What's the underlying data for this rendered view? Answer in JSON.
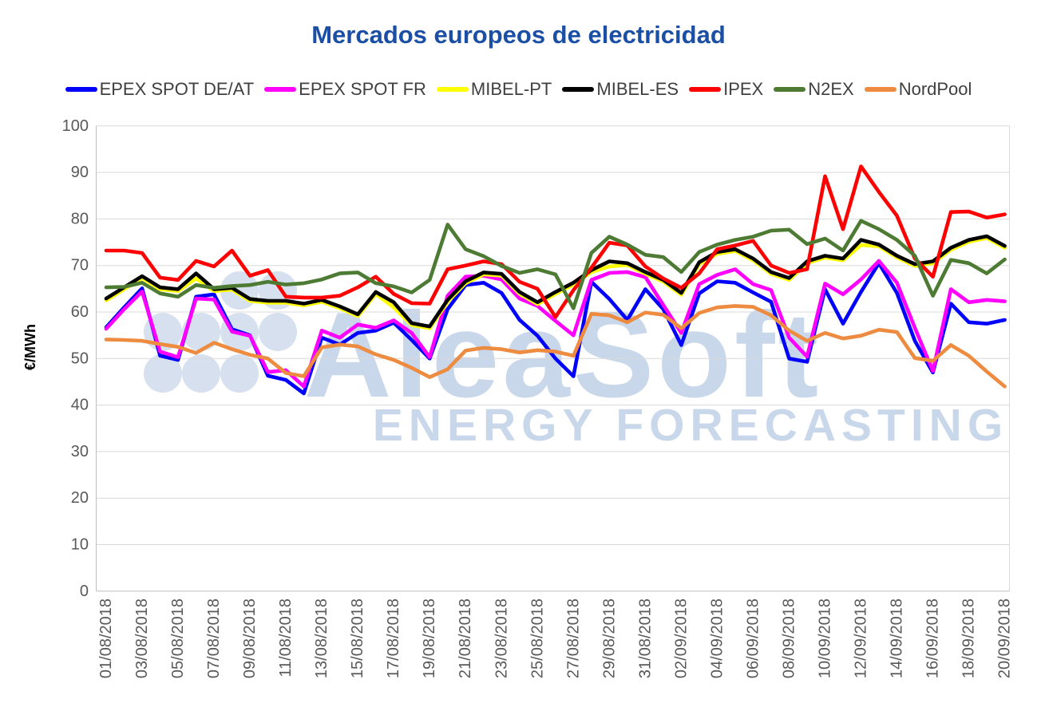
{
  "title": "Mercados europeos de electricidad",
  "watermark": {
    "line1": "AleaSoft",
    "line2": "ENERGY FORECASTING",
    "color": "#c9d7ea",
    "dot_color": "#d6e0ef"
  },
  "colors": {
    "title": "#1b4fa5",
    "grid": "#d9d9d9",
    "axis_line": "#bfbfbf",
    "tick_text": "#595959",
    "legend_text": "#3f3f3f"
  },
  "chart_data": {
    "type": "line",
    "title": "Mercados europeos de electricidad",
    "ylabel": "€/MWh",
    "ylim": [
      0,
      100
    ],
    "y_ticks": [
      0,
      10,
      20,
      30,
      40,
      50,
      60,
      70,
      80,
      90,
      100
    ],
    "grid": "horizontal",
    "legend_position": "top",
    "x_start": "01/08/2018",
    "x_end": "20/09/2018",
    "x_frequency": "daily",
    "n_points": 51,
    "x_tick_labels": [
      "01/08/2018",
      "03/08/2018",
      "05/08/2018",
      "07/08/2018",
      "09/08/2018",
      "11/08/2018",
      "13/08/2018",
      "15/08/2018",
      "17/08/2018",
      "19/08/2018",
      "21/08/2018",
      "23/08/2018",
      "25/08/2018",
      "27/08/2018",
      "29/08/2018",
      "31/08/2018",
      "02/09/2018",
      "04/09/2018",
      "06/09/2018",
      "08/09/2018",
      "10/09/2018",
      "12/09/2018",
      "14/09/2018",
      "16/09/2018",
      "18/09/2018",
      "20/09/2018"
    ],
    "x_tick_every_days": 2,
    "series": [
      {
        "name": "EPEX SPOT DE/AT",
        "color": "#0000ff",
        "values": [
          56.7,
          61.0,
          65.1,
          50.6,
          49.7,
          63.3,
          63.8,
          56.3,
          55.0,
          46.3,
          45.4,
          42.5,
          54.5,
          53.0,
          55.5,
          56.0,
          57.7,
          54.0,
          50.0,
          60.6,
          65.8,
          66.3,
          64.1,
          58.3,
          54.9,
          50.0,
          46.2,
          66.5,
          62.8,
          58.3,
          64.9,
          60.6,
          52.9,
          64.0,
          66.6,
          66.3,
          64.2,
          62.2,
          50.0,
          49.3,
          64.9,
          57.5,
          64.3,
          70.5,
          64.1,
          53.8,
          47.0,
          61.8,
          57.8,
          57.5,
          58.3
        ]
      },
      {
        "name": "EPEX SPOT FR",
        "color": "#ff00ff",
        "values": [
          56.4,
          60.6,
          64.4,
          51.5,
          50.3,
          62.9,
          62.7,
          55.8,
          54.9,
          47.1,
          47.5,
          44.0,
          56.0,
          54.5,
          57.3,
          56.6,
          58.2,
          55.5,
          50.3,
          63.5,
          67.6,
          67.8,
          67.0,
          62.9,
          61.3,
          58.1,
          55.0,
          66.9,
          68.4,
          68.6,
          67.5,
          61.5,
          55.5,
          66.0,
          68.0,
          69.2,
          66.0,
          64.7,
          54.5,
          50.4,
          66.1,
          63.8,
          67.0,
          71.0,
          66.3,
          56.6,
          47.3,
          64.9,
          62.1,
          62.6,
          62.3
        ]
      },
      {
        "name": "MIBEL-PT",
        "color": "#ffff00",
        "values": [
          62.5,
          64.9,
          67.3,
          64.9,
          64.5,
          67.2,
          64.5,
          64.8,
          62.4,
          62.0,
          62.0,
          61.4,
          62.2,
          60.8,
          59.1,
          63.9,
          61.0,
          57.2,
          56.5,
          62.2,
          66.2,
          68.1,
          67.8,
          63.9,
          61.7,
          63.9,
          65.9,
          68.6,
          69.8,
          70.1,
          68.2,
          66.5,
          63.7,
          70.3,
          72.5,
          73.1,
          71.1,
          68.2,
          66.9,
          70.5,
          71.7,
          71.1,
          74.4,
          74.1,
          71.7,
          69.9,
          70.5,
          73.4,
          75.1,
          75.9,
          73.8
        ]
      },
      {
        "name": "MIBEL-ES",
        "color": "#000000",
        "values": [
          62.9,
          65.3,
          67.7,
          65.3,
          64.9,
          68.3,
          64.9,
          65.2,
          62.8,
          62.4,
          62.4,
          61.8,
          62.6,
          61.2,
          59.5,
          64.3,
          62.1,
          57.6,
          56.9,
          62.6,
          66.6,
          68.5,
          68.2,
          64.3,
          62.1,
          64.3,
          66.3,
          69.0,
          70.9,
          70.5,
          68.6,
          66.9,
          64.1,
          70.7,
          72.9,
          73.5,
          71.5,
          68.6,
          67.3,
          70.9,
          72.1,
          71.5,
          75.5,
          74.5,
          72.1,
          70.3,
          70.9,
          73.8,
          75.5,
          76.3,
          74.2
        ]
      },
      {
        "name": "IPEX",
        "color": "#ff0000",
        "values": [
          73.2,
          73.2,
          72.7,
          67.4,
          66.9,
          71.0,
          69.8,
          73.2,
          67.8,
          69.0,
          63.3,
          63.1,
          63.1,
          63.5,
          65.3,
          67.6,
          63.9,
          61.9,
          61.8,
          69.2,
          70.0,
          70.9,
          70.3,
          66.5,
          65.0,
          58.9,
          64.7,
          69.5,
          74.9,
          74.3,
          69.8,
          67.2,
          65.2,
          68.3,
          73.5,
          74.3,
          75.3,
          70.0,
          68.4,
          69.2,
          89.2,
          77.8,
          91.3,
          85.8,
          80.7,
          71.5,
          67.6,
          81.5,
          81.6,
          80.3,
          81.0
        ]
      },
      {
        "name": "N2EX",
        "color": "#4e7b34",
        "values": [
          65.3,
          65.4,
          66.3,
          64.0,
          63.3,
          65.8,
          65.2,
          65.6,
          65.8,
          66.5,
          65.9,
          66.2,
          67.0,
          68.3,
          68.5,
          66.2,
          65.5,
          64.2,
          66.9,
          78.8,
          73.5,
          72.0,
          69.9,
          68.4,
          69.2,
          68.1,
          60.8,
          72.7,
          76.2,
          74.5,
          72.3,
          71.8,
          68.6,
          72.9,
          74.5,
          75.5,
          76.2,
          77.5,
          77.7,
          74.6,
          75.8,
          73.2,
          79.6,
          77.8,
          75.5,
          72.1,
          63.5,
          71.2,
          70.5,
          68.3,
          71.3
        ]
      },
      {
        "name": "NordPool",
        "color": "#ed8b40",
        "values": [
          54.1,
          54.0,
          53.8,
          53.1,
          52.5,
          51.2,
          53.4,
          52.0,
          50.8,
          50.0,
          46.9,
          46.2,
          52.4,
          53.0,
          52.6,
          50.9,
          49.7,
          48.0,
          46.0,
          47.7,
          51.7,
          52.3,
          52.0,
          51.3,
          51.8,
          51.5,
          50.6,
          59.6,
          59.3,
          57.8,
          59.9,
          59.4,
          56.5,
          59.8,
          61.0,
          61.3,
          61.1,
          59.3,
          56.0,
          53.8,
          55.5,
          54.3,
          54.9,
          56.2,
          55.7,
          50.1,
          49.5,
          52.9,
          50.6,
          47.2,
          44.0
        ]
      }
    ]
  }
}
